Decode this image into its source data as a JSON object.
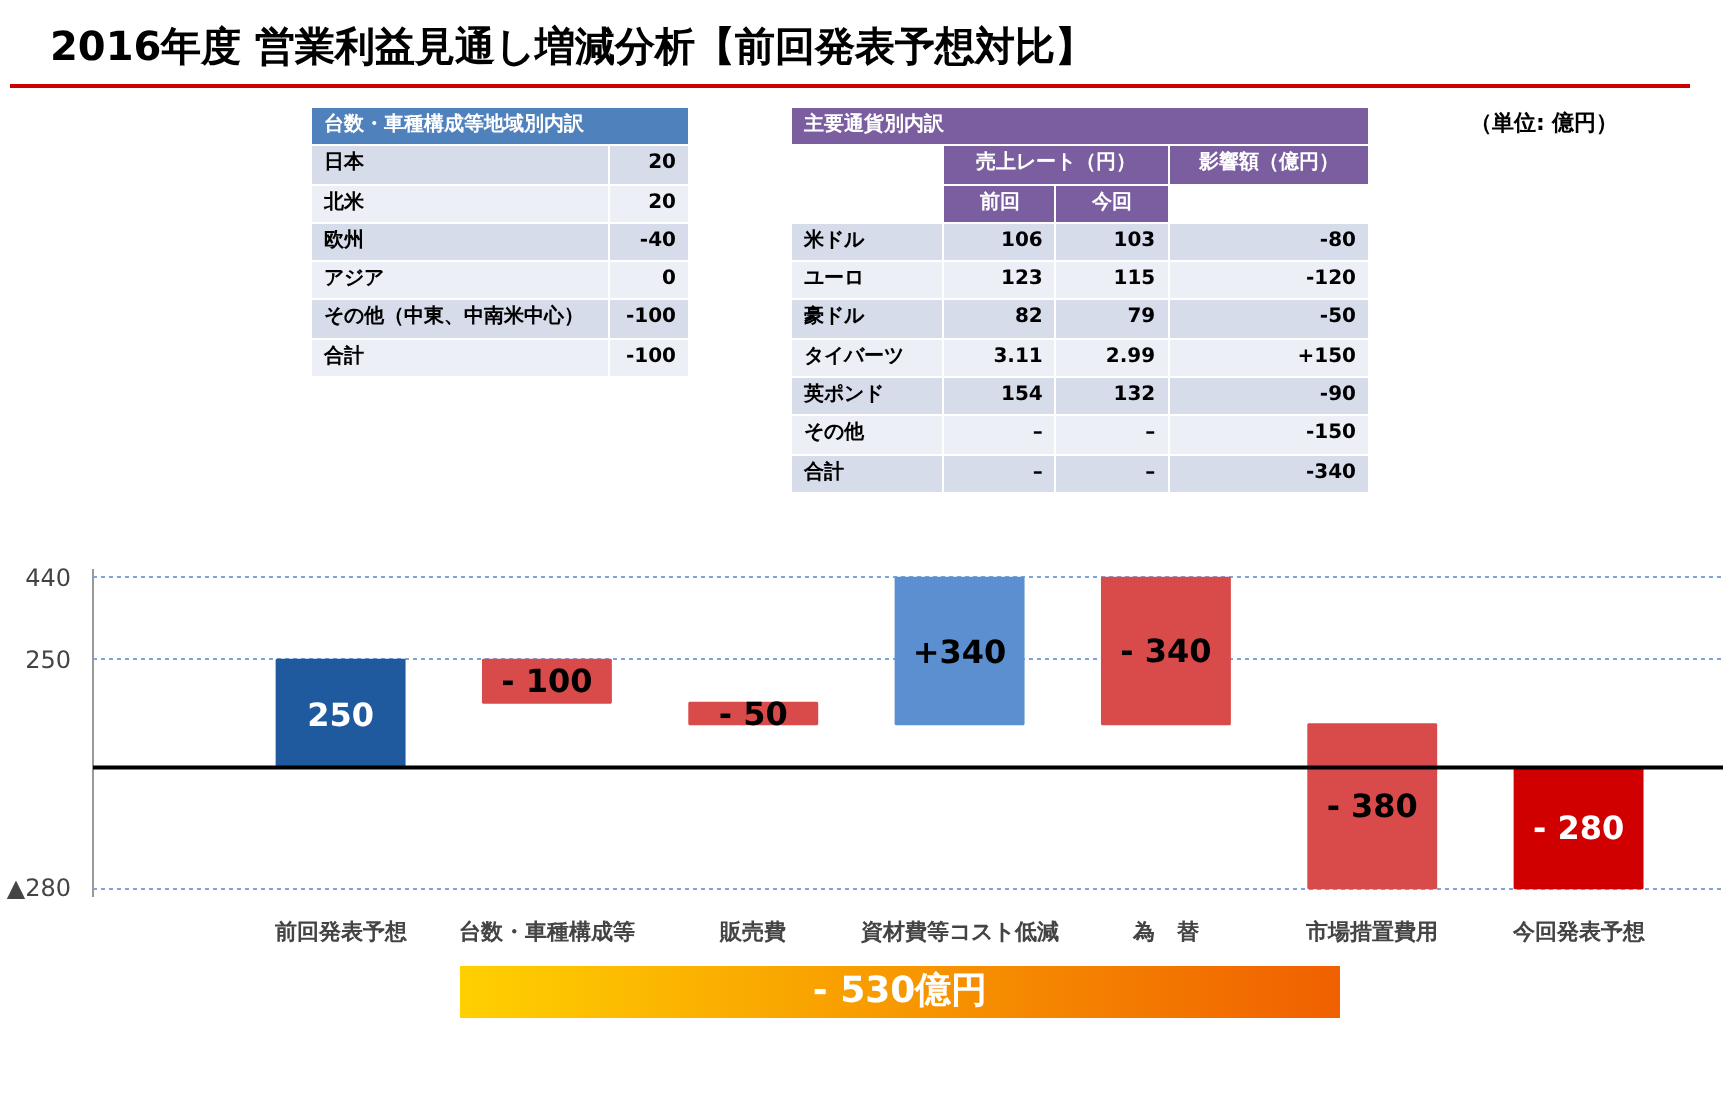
{
  "chart_data": {
    "type": "bar",
    "title": "2016年度 営業利益見通し増減分析【前回発表予想対比】",
    "categories": [
      "前回発表予想",
      "台数・車種構成等",
      "販売費",
      "資材費等コスト低減",
      "為　替",
      "市場措置費用",
      "今回発表予想"
    ],
    "values": [
      250,
      -100,
      -50,
      340,
      -340,
      -380,
      -280
    ],
    "base": [
      0,
      250,
      150,
      100,
      440,
      100,
      0
    ],
    "colors": [
      "#1f5a9e",
      "#d94b4b",
      "#d94b4b",
      "#5b8fd0",
      "#d94b4b",
      "#d94b4b",
      "#d00000"
    ],
    "value_labels": [
      "250",
      "- 100",
      "- 50",
      "+340",
      "- 340",
      "- 380",
      "- 280"
    ],
    "ylim": [
      -300,
      460
    ],
    "yticks": [
      440,
      250,
      {
        "value": -280,
        "label": "▲280"
      }
    ],
    "grid": "y",
    "annotations": [
      "（単位: 億円）",
      "台数・車種構成等地域別内訳\t",
      "日本\t20",
      "北米\t20",
      "欧州\t-40",
      "アジア\t0",
      "その他（中東、中南米中心）\t-100",
      "合計\t-100",
      "主要通貨別内訳\t\t\t",
      "\t売上レート（円）\t\t影響額（億円）",
      "\t前回\t今回",
      "米ドル\t106\t103\t-80",
      "ユーロ\t123\t115\t-120",
      "豪ドル\t82\t79\t-50",
      "タイバーツ\t3.11\t2.99\t+150",
      "英ポンド\t154\t132\t-90",
      "その他\t–\t–\t-150",
      "合計\t–\t–\t-340",
      "- 530億円"
    ]
  }
}
